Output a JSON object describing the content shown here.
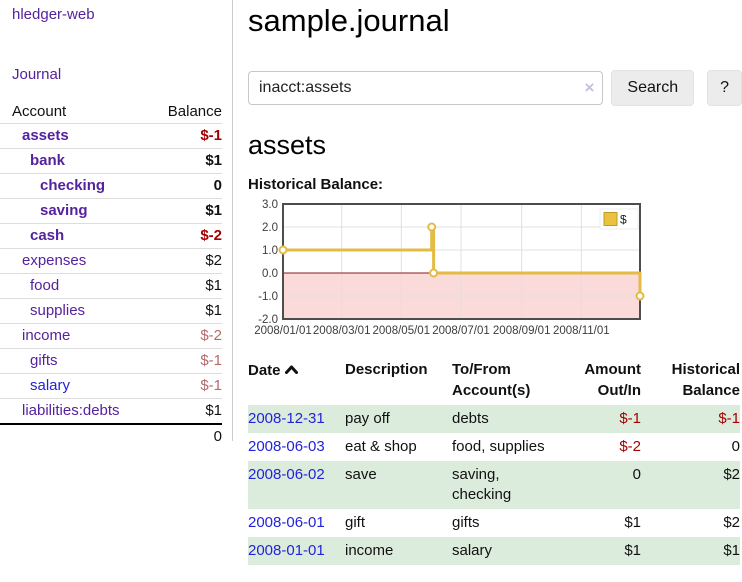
{
  "app": {
    "brand": "hledger-web"
  },
  "sidebar": {
    "nav_journal": "Journal",
    "accounts_table": {
      "header_account": "Account",
      "header_balance": "Balance",
      "rows": [
        {
          "name": "assets",
          "depth": 1,
          "bold": true,
          "balance": "$-1",
          "balance_style": "neg-strong"
        },
        {
          "name": "bank",
          "depth": 2,
          "bold": true,
          "balance": "$1",
          "balance_style": "pos"
        },
        {
          "name": "checking",
          "depth": 3,
          "bold": true,
          "balance": "0",
          "balance_style": "pos"
        },
        {
          "name": "saving",
          "depth": 3,
          "bold": true,
          "balance": "$1",
          "balance_style": "pos"
        },
        {
          "name": "cash",
          "depth": 2,
          "bold": true,
          "balance": "$-2",
          "balance_style": "neg-strong"
        },
        {
          "name": "expenses",
          "depth": 1,
          "bold": false,
          "balance": "$2",
          "balance_style": "pos"
        },
        {
          "name": "food",
          "depth": 2,
          "bold": false,
          "balance": "$1",
          "balance_style": "pos"
        },
        {
          "name": "supplies",
          "depth": 2,
          "bold": false,
          "balance": "$1",
          "balance_style": "pos"
        },
        {
          "name": "income",
          "depth": 1,
          "bold": false,
          "balance": "$-2",
          "balance_style": "neg-soft"
        },
        {
          "name": "gifts",
          "depth": 2,
          "bold": false,
          "balance": "$-1",
          "balance_style": "neg-soft"
        },
        {
          "name": "salary",
          "depth": 2,
          "bold": false,
          "link_color": "blue",
          "balance": "$-1",
          "balance_style": "neg-soft"
        },
        {
          "name": "liabilities:debts",
          "depth": 1,
          "bold": false,
          "balance": "$1",
          "balance_style": "pos"
        }
      ],
      "total": "0"
    }
  },
  "main": {
    "title": "sample.journal",
    "search": {
      "value": "inacct:assets",
      "clear_icon": "×",
      "button_label": "Search",
      "help_label": "?"
    },
    "account_heading": "assets",
    "chart_heading": "Historical Balance:"
  },
  "chart_data": {
    "type": "line",
    "step": true,
    "title": "Historical Balance:",
    "series": [
      {
        "name": "$",
        "color": "#e3bb45",
        "points": [
          {
            "date": "2008-01-01",
            "value": 1
          },
          {
            "date": "2008-06-01",
            "value": 2
          },
          {
            "date": "2008-06-03",
            "value": 0
          },
          {
            "date": "2008-12-31",
            "value": -1
          }
        ]
      }
    ],
    "xlim": [
      "2008-01-01",
      "2008-12-31"
    ],
    "ylim": [
      -2,
      3
    ],
    "y_ticks": [
      "3.0",
      "2.0",
      "1.0",
      "0.0",
      "-1.0",
      "-2.0"
    ],
    "y_tick_values": [
      3,
      2,
      1,
      0,
      -1,
      -2
    ],
    "x_ticks": [
      "2008/01/01",
      "2008/03/01",
      "2008/05/01",
      "2008/07/01",
      "2008/09/01",
      "2008/11/01"
    ],
    "grid": true,
    "legend": {
      "label": "$",
      "position": "top-right"
    },
    "colors": {
      "negative_region_fill": "#fbdada",
      "zero_line": "#8b1a1a",
      "grid": "#e0e0e0",
      "border": "#4d4d4d",
      "tick_text": "#3c3c3c",
      "marker_fill": "#ffffff",
      "legend_square_fill": "#eac23f",
      "legend_square_border": "#bf9c28"
    }
  },
  "register_table": {
    "headers": {
      "date": "Date",
      "description": "Description",
      "accounts": "To/From Account(s)",
      "amount": "Amount Out/In",
      "balance": "Historical Balance"
    },
    "rows": [
      {
        "date": "2008-12-31",
        "description": "pay off",
        "accounts": "debts",
        "amount": "$-1",
        "amount_negative": true,
        "balance": "$-1",
        "balance_negative": true
      },
      {
        "date": "2008-06-03",
        "description": "eat & shop",
        "accounts": "food, supplies",
        "amount": "$-2",
        "amount_negative": true,
        "balance": "0",
        "balance_negative": false
      },
      {
        "date": "2008-06-02",
        "description": "save",
        "accounts": "saving, checking",
        "amount": "0",
        "amount_negative": false,
        "balance": "$2",
        "balance_negative": false
      },
      {
        "date": "2008-06-01",
        "description": "gift",
        "accounts": "gifts",
        "amount": "$1",
        "amount_negative": false,
        "balance": "$2",
        "balance_negative": false
      },
      {
        "date": "2008-01-01",
        "description": "income",
        "accounts": "salary",
        "amount": "$1",
        "amount_negative": false,
        "balance": "$1",
        "balance_negative": false
      }
    ]
  }
}
